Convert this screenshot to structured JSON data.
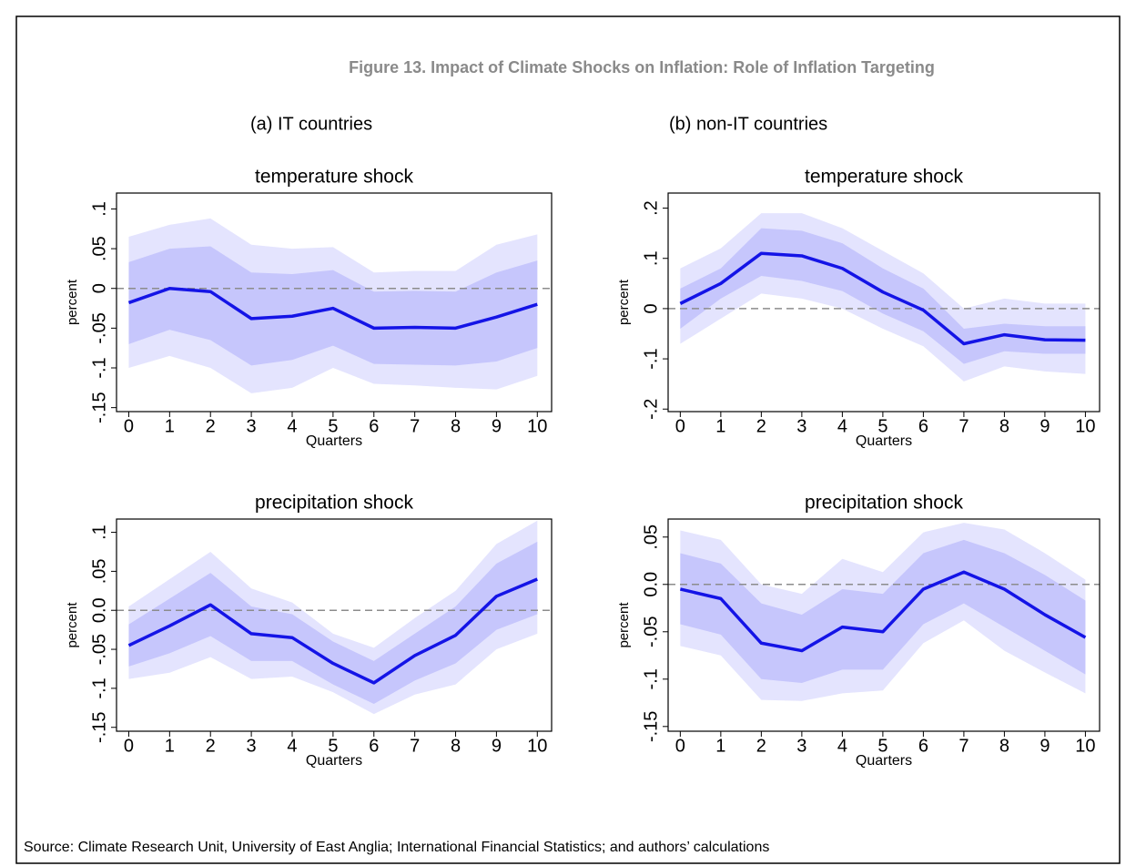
{
  "header": {
    "title": "Figure 13. Impact of Climate Shocks on Inflation: Role of Inflation Targeting",
    "columns": [
      "(a)  IT countries",
      "(b)  non-IT countries"
    ]
  },
  "source": "Source: Climate Research Unit, University of East Anglia; International Financial Statistics; and authors’ calculations",
  "chart_data": [
    {
      "type": "line",
      "title": "temperature shock",
      "xlabel": "Quarters",
      "ylabel": "percent",
      "x": [
        0,
        1,
        2,
        3,
        4,
        5,
        6,
        7,
        8,
        9,
        10
      ],
      "xlim": [
        -0.3,
        10.35
      ],
      "xticks": [
        0,
        1,
        2,
        3,
        4,
        5,
        6,
        7,
        8,
        9,
        10
      ],
      "ylim": [
        -0.155,
        0.12
      ],
      "yticks": [
        {
          "value": -0.15,
          "label": "-.15"
        },
        {
          "value": -0.1,
          "label": "-.1"
        },
        {
          "value": -0.05,
          "label": "-.05"
        },
        0,
        {
          "value": 0.05,
          "label": ".05"
        },
        {
          "value": 0.1,
          "label": ".1"
        }
      ],
      "refline": 0,
      "bands": [
        {
          "color": "#e4e4fe",
          "upper": [
            0.065,
            0.08,
            0.088,
            0.055,
            0.05,
            0.052,
            0.02,
            0.022,
            0.022,
            0.055,
            0.068
          ],
          "lower": [
            -0.1,
            -0.085,
            -0.1,
            -0.132,
            -0.125,
            -0.1,
            -0.12,
            -0.122,
            -0.125,
            -0.127,
            -0.11
          ]
        },
        {
          "color": "#c6c6fc",
          "upper": [
            0.033,
            0.05,
            0.053,
            0.02,
            0.018,
            0.023,
            -0.004,
            -0.003,
            -0.004,
            0.02,
            0.035
          ],
          "lower": [
            -0.07,
            -0.052,
            -0.065,
            -0.097,
            -0.09,
            -0.072,
            -0.095,
            -0.096,
            -0.097,
            -0.092,
            -0.075
          ]
        }
      ],
      "series": [
        {
          "color": "#1414e6",
          "values": [
            -0.018,
            0,
            -0.004,
            -0.038,
            -0.035,
            -0.025,
            -0.05,
            -0.049,
            -0.05,
            -0.036,
            -0.02
          ]
        }
      ]
    },
    {
      "type": "line",
      "title": "temperature shock",
      "xlabel": "Quarters",
      "ylabel": "percent",
      "x": [
        0,
        1,
        2,
        3,
        4,
        5,
        6,
        7,
        8,
        9,
        10
      ],
      "xlim": [
        -0.3,
        10.35
      ],
      "xticks": [
        0,
        1,
        2,
        3,
        4,
        5,
        6,
        7,
        8,
        9,
        10
      ],
      "ylim": [
        -0.205,
        0.23
      ],
      "yticks": [
        {
          "value": -0.2,
          "label": "-.2"
        },
        {
          "value": -0.1,
          "label": "-.1"
        },
        0,
        {
          "value": 0.1,
          "label": ".1"
        },
        {
          "value": 0.2,
          "label": ".2"
        }
      ],
      "refline": 0,
      "bands": [
        {
          "color": "#e4e4fe",
          "upper": [
            0.08,
            0.12,
            0.19,
            0.19,
            0.16,
            0.115,
            0.07,
            0,
            0.02,
            0.01,
            0.01
          ],
          "lower": [
            -0.07,
            -0.02,
            0.03,
            0.02,
            0,
            -0.04,
            -0.075,
            -0.145,
            -0.115,
            -0.125,
            -0.13
          ]
        },
        {
          "color": "#c6c6fc",
          "upper": [
            0.04,
            0.08,
            0.16,
            0.155,
            0.13,
            0.08,
            0.04,
            -0.04,
            -0.03,
            -0.035,
            -0.035
          ],
          "lower": [
            -0.04,
            0.02,
            0.065,
            0.055,
            0.035,
            -0.01,
            -0.045,
            -0.11,
            -0.085,
            -0.09,
            -0.09
          ]
        }
      ],
      "series": [
        {
          "color": "#1414e6",
          "values": [
            0.01,
            0.05,
            0.11,
            0.105,
            0.08,
            0.033,
            -0.003,
            -0.07,
            -0.052,
            -0.062,
            -0.063
          ]
        }
      ]
    },
    {
      "type": "line",
      "title": "precipitation shock",
      "xlabel": "Quarters",
      "ylabel": "percent",
      "x": [
        0,
        1,
        2,
        3,
        4,
        5,
        6,
        7,
        8,
        9,
        10
      ],
      "xlim": [
        -0.3,
        10.35
      ],
      "xticks": [
        0,
        1,
        2,
        3,
        4,
        5,
        6,
        7,
        8,
        9,
        10
      ],
      "ylim": [
        -0.155,
        0.117
      ],
      "yticks": [
        {
          "value": -0.15,
          "label": "-.15"
        },
        {
          "value": -0.1,
          "label": "-.1"
        },
        {
          "value": -0.05,
          "label": "-.05"
        },
        {
          "value": 0,
          "label": "0.0"
        },
        {
          "value": 0.05,
          "label": ".05"
        },
        {
          "value": 0.1,
          "label": ".1"
        }
      ],
      "refline": 0,
      "bands": [
        {
          "color": "#e4e4fe",
          "upper": [
            0.005,
            0.04,
            0.075,
            0.028,
            0.01,
            -0.03,
            -0.048,
            -0.01,
            0.025,
            0.085,
            0.115
          ],
          "lower": [
            -0.088,
            -0.08,
            -0.06,
            -0.088,
            -0.085,
            -0.105,
            -0.133,
            -0.108,
            -0.095,
            -0.05,
            -0.03
          ]
        },
        {
          "color": "#c6c6fc",
          "upper": [
            -0.018,
            0.015,
            0.048,
            0.005,
            -0.005,
            -0.04,
            -0.065,
            -0.03,
            0.005,
            0.06,
            0.088
          ],
          "lower": [
            -0.072,
            -0.055,
            -0.033,
            -0.065,
            -0.065,
            -0.095,
            -0.12,
            -0.09,
            -0.068,
            -0.025,
            -0.005
          ]
        }
      ],
      "series": [
        {
          "color": "#1414e6",
          "values": [
            -0.045,
            -0.02,
            0.007,
            -0.03,
            -0.035,
            -0.068,
            -0.093,
            -0.058,
            -0.032,
            0.018,
            0.04
          ]
        }
      ]
    },
    {
      "type": "line",
      "title": "precipitation shock",
      "xlabel": "Quarters",
      "ylabel": "percent",
      "x": [
        0,
        1,
        2,
        3,
        4,
        5,
        6,
        7,
        8,
        9,
        10
      ],
      "xlim": [
        -0.3,
        10.35
      ],
      "xticks": [
        0,
        1,
        2,
        3,
        4,
        5,
        6,
        7,
        8,
        9,
        10
      ],
      "ylim": [
        -0.155,
        0.069
      ],
      "yticks": [
        {
          "value": -0.15,
          "label": "-.15"
        },
        {
          "value": -0.1,
          "label": "-.1"
        },
        {
          "value": -0.05,
          "label": "-.05"
        },
        {
          "value": 0,
          "label": "0.0"
        },
        {
          "value": 0.05,
          "label": ".05"
        }
      ],
      "refline": 0,
      "bands": [
        {
          "color": "#e4e4fe",
          "upper": [
            0.057,
            0.047,
            0,
            -0.01,
            0.027,
            0.013,
            0.055,
            0.065,
            0.058,
            0.033,
            0.005
          ],
          "lower": [
            -0.065,
            -0.075,
            -0.122,
            -0.123,
            -0.115,
            -0.112,
            -0.062,
            -0.038,
            -0.07,
            -0.093,
            -0.115
          ]
        },
        {
          "color": "#c6c6fc",
          "upper": [
            0.033,
            0.022,
            -0.02,
            -0.032,
            -0.005,
            -0.01,
            0.033,
            0.047,
            0.033,
            0.01,
            -0.017
          ],
          "lower": [
            -0.042,
            -0.053,
            -0.1,
            -0.104,
            -0.09,
            -0.09,
            -0.042,
            -0.02,
            -0.045,
            -0.07,
            -0.095
          ]
        }
      ],
      "series": [
        {
          "color": "#1414e6",
          "values": [
            -0.005,
            -0.015,
            -0.062,
            -0.07,
            -0.045,
            -0.05,
            -0.005,
            0.013,
            -0.005,
            -0.032,
            -0.056
          ]
        }
      ]
    }
  ]
}
